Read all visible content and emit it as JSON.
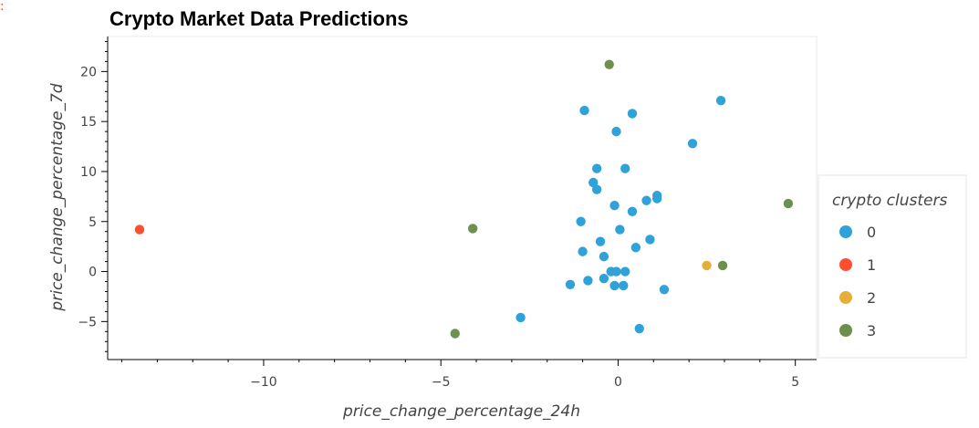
{
  "cell_marker": ":",
  "chart_data": {
    "type": "scatter",
    "title": "Crypto Market Data Predictions",
    "xlabel": "price_change_percentage_24h",
    "ylabel": "price_change_percentage_7d",
    "xlim": [
      -14.4,
      5.6
    ],
    "ylim": [
      -8.8,
      23.5
    ],
    "x_ticks": [
      -10,
      -5,
      0,
      5
    ],
    "x_tick_labels": [
      "−10",
      "−5",
      "0",
      "5"
    ],
    "y_ticks": [
      -5,
      0,
      5,
      10,
      15,
      20
    ],
    "y_tick_labels": [
      "−5",
      "0",
      "5",
      "10",
      "15",
      "20"
    ],
    "legend": {
      "title": "crypto clusters",
      "placement": "right"
    },
    "series": [
      {
        "name": "0",
        "color": "#30a2da",
        "points": [
          [
            -0.95,
            16.1
          ],
          [
            0.4,
            15.8
          ],
          [
            2.9,
            17.1
          ],
          [
            -0.05,
            14.0
          ],
          [
            2.1,
            12.8
          ],
          [
            -0.6,
            10.3
          ],
          [
            0.2,
            10.3
          ],
          [
            -0.7,
            8.9
          ],
          [
            -0.6,
            8.2
          ],
          [
            1.1,
            7.6
          ],
          [
            1.1,
            7.3
          ],
          [
            0.8,
            7.1
          ],
          [
            -0.1,
            6.6
          ],
          [
            0.4,
            6.0
          ],
          [
            -1.05,
            5.0
          ],
          [
            0.05,
            4.2
          ],
          [
            0.9,
            3.2
          ],
          [
            -0.5,
            3.0
          ],
          [
            0.5,
            2.4
          ],
          [
            -1.0,
            2.0
          ],
          [
            -0.4,
            1.5
          ],
          [
            -0.2,
            0.0
          ],
          [
            -0.05,
            0.0
          ],
          [
            0.2,
            0.0
          ],
          [
            -0.4,
            -0.7
          ],
          [
            -0.85,
            -0.9
          ],
          [
            -1.35,
            -1.3
          ],
          [
            -0.1,
            -1.4
          ],
          [
            0.15,
            -1.4
          ],
          [
            1.3,
            -1.8
          ],
          [
            -2.75,
            -4.6
          ],
          [
            0.6,
            -5.7
          ]
        ]
      },
      {
        "name": "1",
        "color": "#fc4f30",
        "points": [
          [
            -13.5,
            4.2
          ]
        ]
      },
      {
        "name": "2",
        "color": "#e5ae38",
        "points": [
          [
            2.5,
            0.6
          ]
        ]
      },
      {
        "name": "3",
        "color": "#6d904f",
        "points": [
          [
            -0.25,
            20.7
          ],
          [
            4.8,
            6.8
          ],
          [
            -4.1,
            4.3
          ],
          [
            2.95,
            0.6
          ],
          [
            -4.6,
            -6.2
          ]
        ]
      }
    ]
  }
}
